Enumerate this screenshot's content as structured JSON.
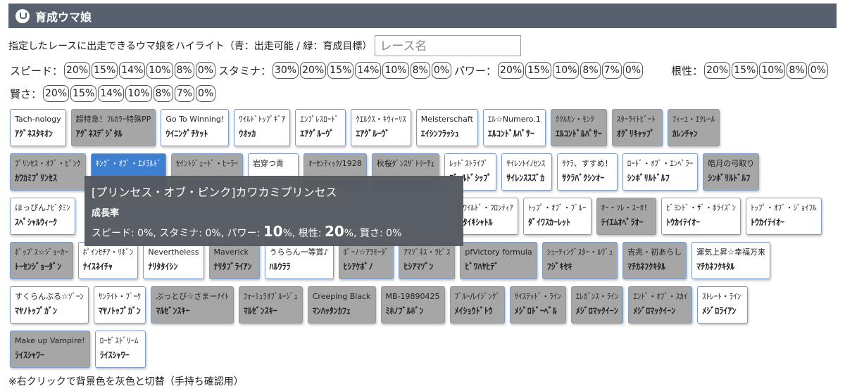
{
  "header": {
    "title": "育成ウマ娘"
  },
  "instruction": "指定したレースに出走できるウマ娘をハイライト（青：出走可能 / 緑：育成目標）",
  "race_input": {
    "placeholder": "レース名"
  },
  "filters": [
    {
      "label": "スピード：",
      "options": [
        "20%",
        "15%",
        "14%",
        "10%",
        "8%",
        "0%"
      ]
    },
    {
      "label": "スタミナ：",
      "options": [
        "30%",
        "20%",
        "15%",
        "14%",
        "10%",
        "8%",
        "0%"
      ]
    },
    {
      "label": "パワー：",
      "options": [
        "20%",
        "15%",
        "10%",
        "8%",
        "7%",
        "0%"
      ]
    },
    {
      "label": "根性：",
      "options": [
        "20%",
        "15%",
        "10%",
        "8%",
        "0%"
      ]
    },
    {
      "label": "賢さ：",
      "options": [
        "20%",
        "15%",
        "14%",
        "10%",
        "8%",
        "7%",
        "0%"
      ]
    }
  ],
  "card_rows": [
    [
      {
        "title": "Tach-nology",
        "name": "ｱｸﾞﾈｽﾀｷｵﾝ",
        "style": "white"
      },
      {
        "title": "超特急！ﾌﾙｶﾗｰ特殊PP",
        "name": "ｱｸﾞﾈｽﾃﾞｼﾞﾀﾙ",
        "style": "gray"
      },
      {
        "title": "Go To Winning!",
        "name": "ｳｲﾆﾝｸﾞﾁｹｯﾄ",
        "style": "white"
      },
      {
        "title": "ﾜｲﾙﾄﾞﾄｯﾌﾟｷﾞｱ",
        "name": "ｳｵｯｶ",
        "style": "white"
      },
      {
        "title": "ｴﾝﾌﾟﾚｽﾛｰﾄﾞ",
        "name": "ｴｱｸﾞﾙｰｳﾞ",
        "style": "white"
      },
      {
        "title": "ｸｴﾙｸｽ・ｷｳｨｰﾘｽ",
        "name": "ｴｱｸﾞﾙｰｳﾞ",
        "style": "white"
      },
      {
        "title": "Meisterschaft",
        "name": "ｴｲｼﾝﾌﾗｯｼｭ",
        "style": "white"
      },
      {
        "title": "ｴﾙ☆Numero.1",
        "name": "ｴﾙｺﾝﾄﾞﾙﾊﾟｻｰ",
        "style": "white"
      },
      {
        "title": "ｸｸﾙｶﾝ・ﾓﾝｸ",
        "name": "ｴﾙｺﾝﾄﾞﾙﾊﾟｻｰ",
        "style": "gray"
      },
      {
        "title": "ｽﾀｰﾗｲﾄﾋﾞｰﾄ",
        "name": "ｵｸﾞﾘｷｬｯﾌﾟ",
        "style": "gray"
      },
      {
        "title": "ﾌｨｰﾕ・ｴｸﾚｰﾙ",
        "name": "ｶﾚﾝﾁｬﾝ",
        "style": "gray"
      }
    ],
    [
      {
        "title": "ﾌﾟﾘﾝｾｽ・ｵﾌﾞ・ﾋﾟﾝｸ",
        "name": "ｶﾜｶﾐﾌﾟﾘﾝｾｽ",
        "style": "gray"
      },
      {
        "title": "ｷﾝｸﾞ・ｵﾌﾞ・ｴﾒﾗﾙﾄﾞ",
        "style": "blue"
      },
      {
        "title": "ｾｲﾝﾄｼﾞｪｰﾄﾞ・ﾋｰﾗｰ",
        "style": "gray"
      },
      {
        "title": "岩穿つ青",
        "style": "white"
      },
      {
        "title": "ｵｰｾﾝﾃｨｯｸ/1928",
        "style": "gray"
      },
      {
        "title": "秋桜ﾀﾞﾝｽｻﾞﾄﾘｰﾁｪ",
        "style": "gray"
      },
      {
        "title": "ﾚｯﾄﾞｽﾄﾗｲﾌﾟ",
        "name": "ｺﾞｰﾙﾄﾞｼｯﾌﾟ",
        "style": "white"
      },
      {
        "title": "ｻｲﾚﾝﾄｲﾉｾﾝｽ",
        "name": "ｻｲﾚﾝｽｽｽﾞｶ",
        "style": "white"
      },
      {
        "title": "ｻｸﾗ、すすめ！",
        "name": "ｻｸﾗﾊﾞｸｼﾝｵｰ",
        "style": "white"
      },
      {
        "title": "ﾛｰﾄﾞ・ｵﾌﾞ・ｴﾝﾍﾟﾗｰ",
        "name": "ｼﾝﾎﾞﾘﾙﾄﾞﾙﾌ",
        "style": "white"
      },
      {
        "title": "皓月の弓取り",
        "name": "ｼﾝﾎﾞﾘﾙﾄﾞﾙﾌ",
        "style": "gray"
      }
    ],
    [
      {
        "title": "ほっぴん♪ﾋﾞﾀﾐﾝ",
        "name": "ｽﾍﾟｼｬﾙｳｨｰｸ",
        "style": "white"
      },
      {
        "title": "ﾜｲﾙﾄﾞ・ﾌﾛﾝﾃｨｱ",
        "name": "ﾀｲｷｼｬﾄﾙ",
        "style": "white"
      },
      {
        "title": "ﾄｯﾌﾟ・ｵﾌﾞ・ﾌﾞﾙｰ",
        "name": "ﾀﾞｲﾜｽｶｰﾚｯﾄ",
        "style": "white"
      },
      {
        "title": "ｵｰ・ｿﾚ・ｽｰｵ！",
        "name": "ﾃｲｴﾑｵﾍﾟﾗｵｰ",
        "style": "gray"
      },
      {
        "title": "ﾋﾞﾖﾝﾄﾞ・ｻﾞ・ﾎﾗｲｽﾞﾝ",
        "name": "ﾄｳｶｲﾃｲｵｰ",
        "style": "white"
      },
      {
        "title": "ﾄｯﾌﾟ・ｵﾌﾞ・ｼﾞｮｲﾌﾙ",
        "name": "ﾄｳｶｲﾃｲｵｰ",
        "style": "white"
      }
    ],
    [
      {
        "title": "ﾎﾟｯﾌﾟｽ☆ｼﾞｮｰｶｰ",
        "name": "ﾄｰｾﾝｼﾞｮｰﾀﾞﾝ",
        "style": "gray"
      },
      {
        "title": "ﾎﾟｲﾝｾﾁｱ・ﾘﾎﾞﾝ",
        "name": "ﾅｲｽﾈｲﾁｬ",
        "style": "white"
      },
      {
        "title": "Nevertheless",
        "name": "ﾅﾘﾀﾀｲｼﾝ",
        "style": "white"
      },
      {
        "title": "Maverick",
        "name": "ﾅﾘﾀﾌﾞﾗｲｱﾝ",
        "style": "gray"
      },
      {
        "title": "うららん一等賞♪",
        "name": "ﾊﾙｳﾗﾗ",
        "style": "white"
      },
      {
        "title": "ﾎﾞｰﾉ☆ｱﾗﾓｰﾀﾞ",
        "name": "ﾋｼｱｹﾎﾞﾉ",
        "style": "gray"
      },
      {
        "title": "ｱﾏｿﾞﾈｽ・ﾗﾋﾟｽ",
        "name": "ﾋｼｱﾏｿﾞﾝ",
        "style": "gray"
      },
      {
        "title": "pfVictory formula",
        "name": "ﾋﾞﾜﾊﾔﾋﾃﾞ",
        "style": "gray"
      },
      {
        "title": "ｼｭｰﾃｨﾝｸﾞｽﾀｰ・ﾙｳﾞｭ",
        "name": "ﾌｼﾞｷｾｷ",
        "style": "gray"
      },
      {
        "title": "吉兆・初あらし",
        "name": "ﾏﾁｶﾈﾌｸｷﾀﾙ",
        "style": "gray"
      },
      {
        "title": "運気上昇☆幸福万来",
        "name": "ﾏﾁｶﾈﾌｸｷﾀﾙ",
        "style": "white"
      }
    ],
    [
      {
        "title": "すくらんぶる☆ｿﾞｰﾝ",
        "name": "ﾏﾔﾉﾄｯﾌﾟｶﾞﾝ",
        "style": "white"
      },
      {
        "title": "ｻﾝﾗｲﾄ・ﾌﾞｰｹ",
        "name": "ﾏﾔﾉﾄｯﾌﾟｶﾞﾝ",
        "style": "white"
      },
      {
        "title": "ぶっとび☆さまーﾅｲﾄ",
        "name": "ﾏﾙｾﾞﾝｽｷｰ",
        "style": "gray"
      },
      {
        "title": "ﾌｫｰﾐｭﾗｵﾌﾞﾙｰｼﾞｭ",
        "name": "ﾏﾙｾﾞﾝｽｷｰ",
        "style": "gray"
      },
      {
        "title": "Creeping Black",
        "name": "ﾏﾝﾊｯﾀﾝｶﾌｪ",
        "style": "gray"
      },
      {
        "title": "MB-19890425",
        "name": "ﾐﾎﾉﾌﾞﾙﾎﾞﾝ",
        "style": "gray"
      },
      {
        "title": "ﾌﾞﾙｰ/ﾚｲｼﾞﾝｸﾞ",
        "name": "ﾒｲｼｮｳﾄﾞﾄｳ",
        "style": "gray"
      },
      {
        "title": "ｻｲｽﾃｯﾄﾞ・ﾗｲﾝ",
        "name": "ﾒｼﾞﾛﾄﾞｰﾍﾞﾙ",
        "style": "gray"
      },
      {
        "title": "ｴﾚｶﾞﾝｽ・ﾗｲﾝ",
        "name": "ﾒｼﾞﾛﾏｯｸｲｰﾝ",
        "style": "gray"
      },
      {
        "title": "ｴﾝﾄﾞ・ｵﾌﾞ・ｽｶｲ",
        "name": "ﾒｼﾞﾛﾏｯｸｲｰﾝ",
        "style": "gray"
      },
      {
        "title": "ｽﾄﾚｰﾄ・ﾗｲﾝ",
        "name": "ﾒｼﾞﾛﾗｲｱﾝ",
        "style": "white"
      }
    ],
    [
      {
        "title": "Make up Vampire!",
        "name": "ﾗｲｽｼｬﾜｰ",
        "style": "gray"
      },
      {
        "title": "ﾛｰｾﾞｽﾄﾞﾘｰﾑ",
        "name": "ﾗｲｽｼｬﾜｰ",
        "style": "white"
      }
    ]
  ],
  "tooltip": {
    "title": "[プリンセス・オブ・ピンク]カワカミプリンセス",
    "heading": "成長率",
    "segments": [
      {
        "text": "スピード: 0%, スタミナ: 0%, パワー: "
      },
      {
        "text": "10",
        "emphasis": true
      },
      {
        "text": "%, 根性: "
      },
      {
        "text": "20",
        "emphasis": true
      },
      {
        "text": "%, 賢さ: 0%"
      }
    ]
  },
  "note": "※右クリックで背景色を灰色と切替（手持ち確認用）"
}
